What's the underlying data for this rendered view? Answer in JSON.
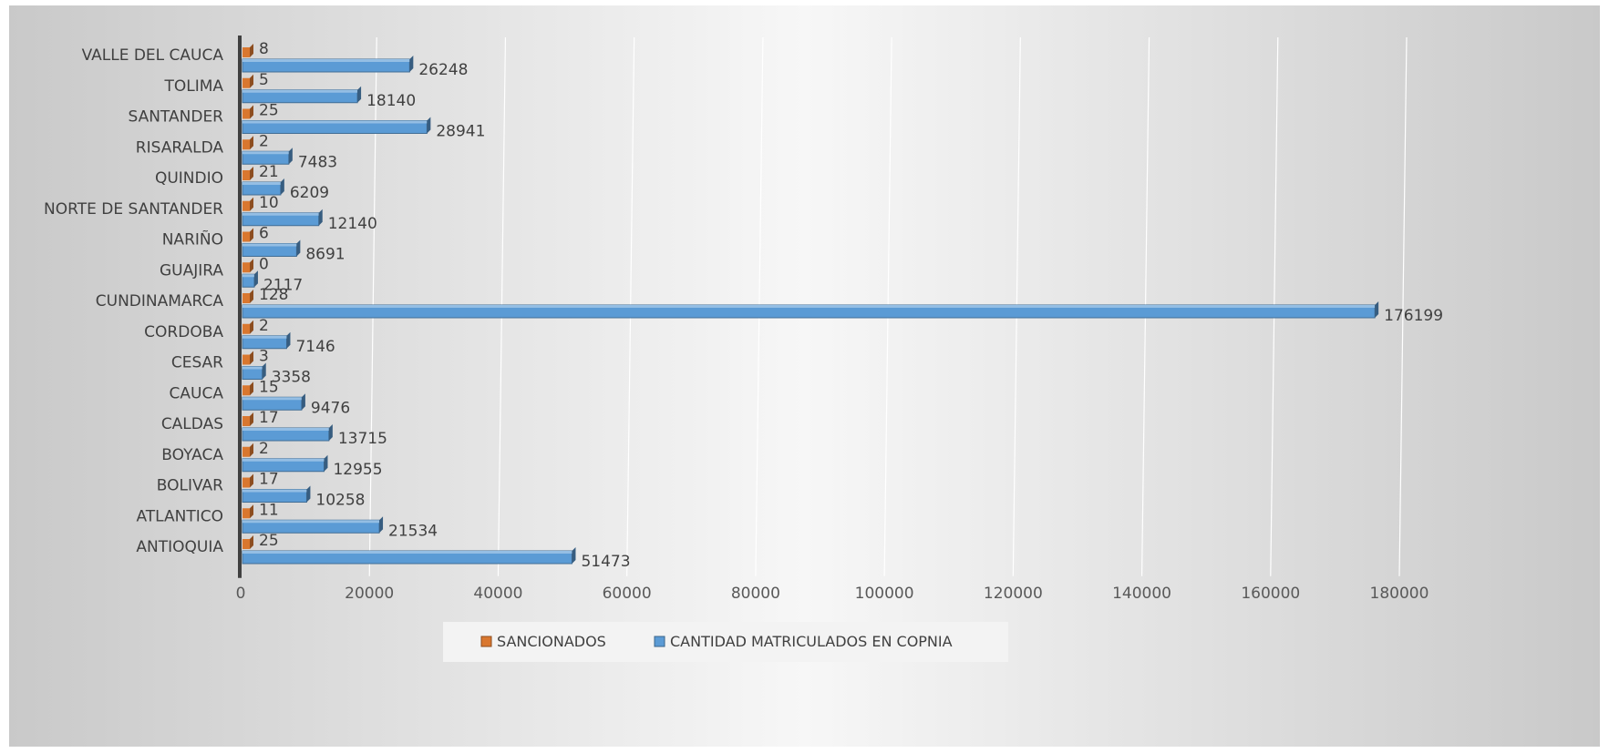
{
  "chart_data": {
    "type": "bar",
    "orientation": "horizontal",
    "style": "3d",
    "title": "",
    "xlabel": "",
    "ylabel": "",
    "categories": [
      "ANTIOQUIA",
      "ATLANTICO",
      "BOLIVAR",
      "BOYACA",
      "CALDAS",
      "CAUCA",
      "CESAR",
      "CORDOBA",
      "CUNDINAMARCA",
      "GUAJIRA",
      "NARIÑO",
      "NORTE DE SANTANDER",
      "QUINDIO",
      "RISARALDA",
      "SANTANDER",
      "TOLIMA",
      "VALLE DEL CAUCA"
    ],
    "series": [
      {
        "name": "SANCIONADOS",
        "color": "#d9772f",
        "values": [
          25,
          11,
          17,
          2,
          17,
          15,
          3,
          2,
          128,
          0,
          6,
          10,
          21,
          2,
          25,
          5,
          8
        ]
      },
      {
        "name": "CANTIDAD MATRICULADOS EN COPNIA",
        "color": "#5b9bd5",
        "values": [
          51473,
          21534,
          10258,
          12955,
          13715,
          9476,
          3358,
          7146,
          176199,
          2117,
          8691,
          12140,
          6209,
          7483,
          28941,
          18140,
          26248
        ]
      }
    ],
    "xlim": [
      0,
      180000
    ],
    "xticks": [
      0,
      20000,
      40000,
      60000,
      80000,
      100000,
      120000,
      140000,
      160000,
      180000
    ],
    "grid": true,
    "data_labels": true,
    "legend_position": "bottom"
  }
}
